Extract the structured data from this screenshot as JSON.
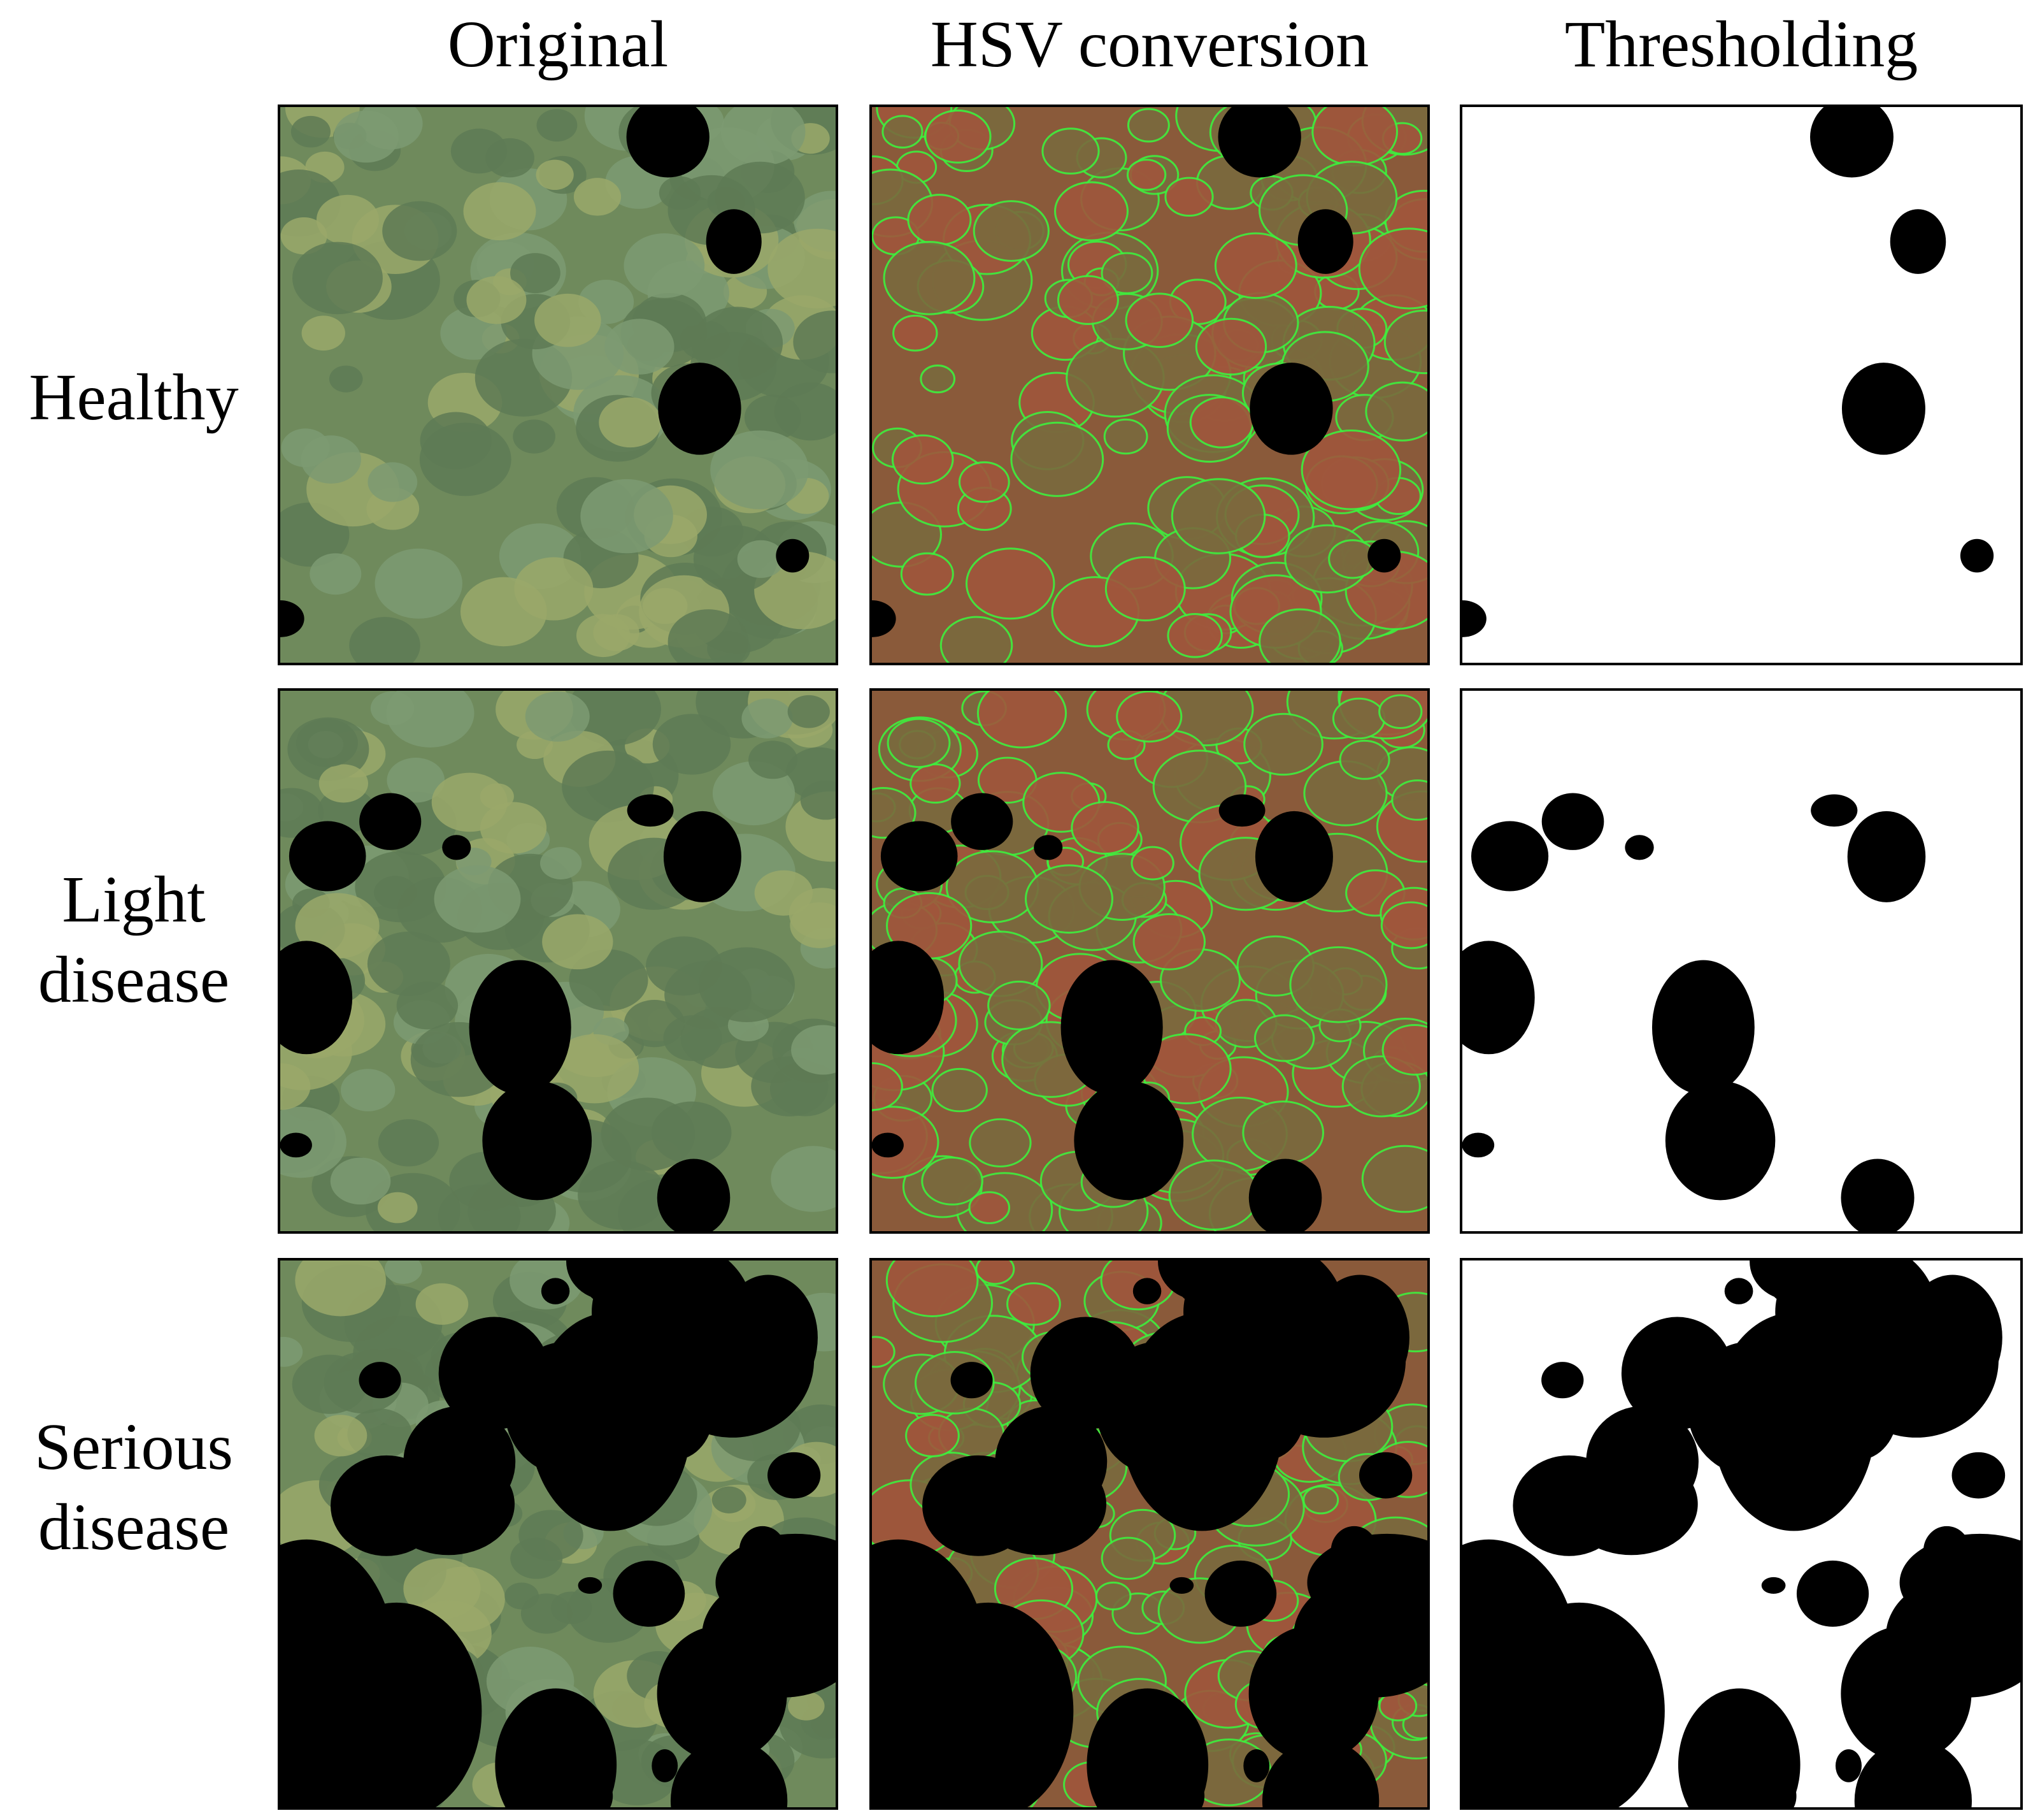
{
  "columns": [
    "Original",
    "HSV conversion",
    "Thresholding"
  ],
  "rows": [
    {
      "label": [
        "Healthy"
      ]
    },
    {
      "label": [
        "Light",
        "disease"
      ]
    },
    {
      "label": [
        "Serious",
        "disease"
      ]
    }
  ]
}
